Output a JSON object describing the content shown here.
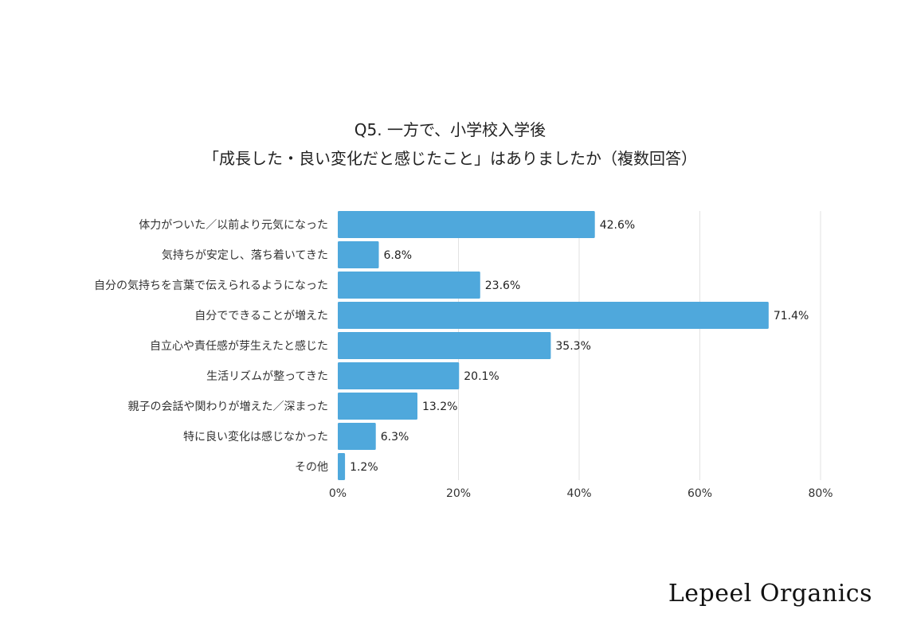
{
  "chart_data": {
    "type": "bar",
    "orientation": "horizontal",
    "title": [
      "Q5. 一方で、小学校入学後",
      "「成長した・良い変化だと感じたこと」はありましたか（複数回答）"
    ],
    "categories": [
      "体力がついた／以前より元気になった",
      "気持ちが安定し、落ち着いてきた",
      "自分の気持ちを言葉で伝えられるようになった",
      "自分でできることが増えた",
      "自立心や責任感が芽生えたと感じた",
      "生活リズムが整ってきた",
      "親子の会話や関わりが増えた／深まった",
      "特に良い変化は感じなかった",
      "その他"
    ],
    "values": [
      42.6,
      6.8,
      23.6,
      71.4,
      35.3,
      20.1,
      13.2,
      6.3,
      1.2
    ],
    "data_labels": [
      "42.6%",
      "6.8%",
      "23.6%",
      "71.4%",
      "35.3%",
      "20.1%",
      "13.2%",
      "6.3%",
      "1.2%"
    ],
    "xlim": [
      0,
      80
    ],
    "xticks": [
      0,
      20,
      40,
      60,
      80
    ],
    "xtick_labels": [
      "0%",
      "20%",
      "40%",
      "60%",
      "80%"
    ],
    "grid": "vertical",
    "bar_color": "#4fa8dc",
    "grid_color": "#e2e2e2"
  },
  "brand": "Lepeel Organics"
}
